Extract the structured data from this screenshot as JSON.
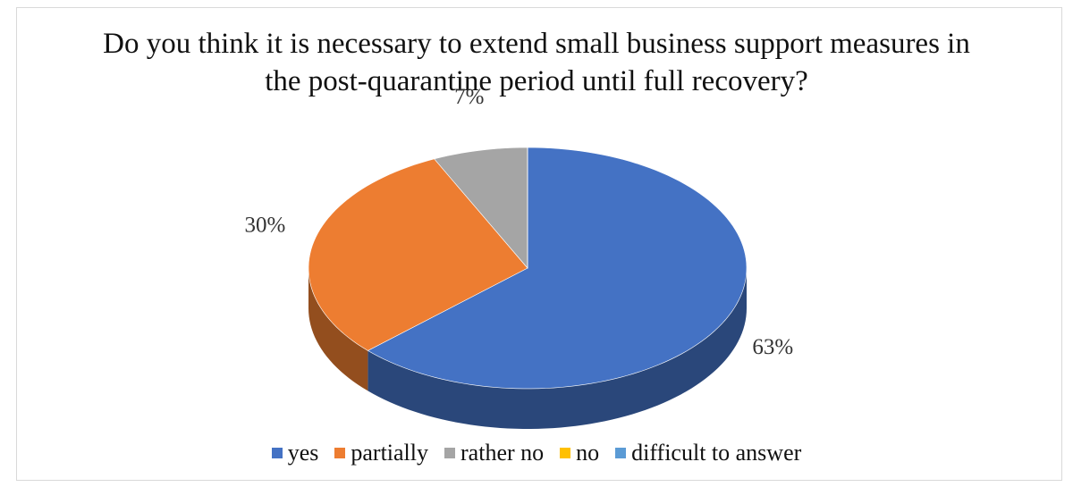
{
  "chart_data": {
    "type": "pie",
    "title": "Do you think it is necessary to extend small business support measures in the post-quarantine period until full recovery?",
    "categories": [
      "yes",
      "partially",
      "rather no",
      "no",
      "difficult to answer"
    ],
    "values": [
      63,
      30,
      7,
      0,
      0
    ],
    "value_labels": [
      "63%",
      "30%",
      "7%",
      null,
      null
    ],
    "colors": [
      "#4472c4",
      "#ed7d31",
      "#a5a5a5",
      "#ffc000",
      "#5b9bd5"
    ],
    "legend": "bottom"
  }
}
